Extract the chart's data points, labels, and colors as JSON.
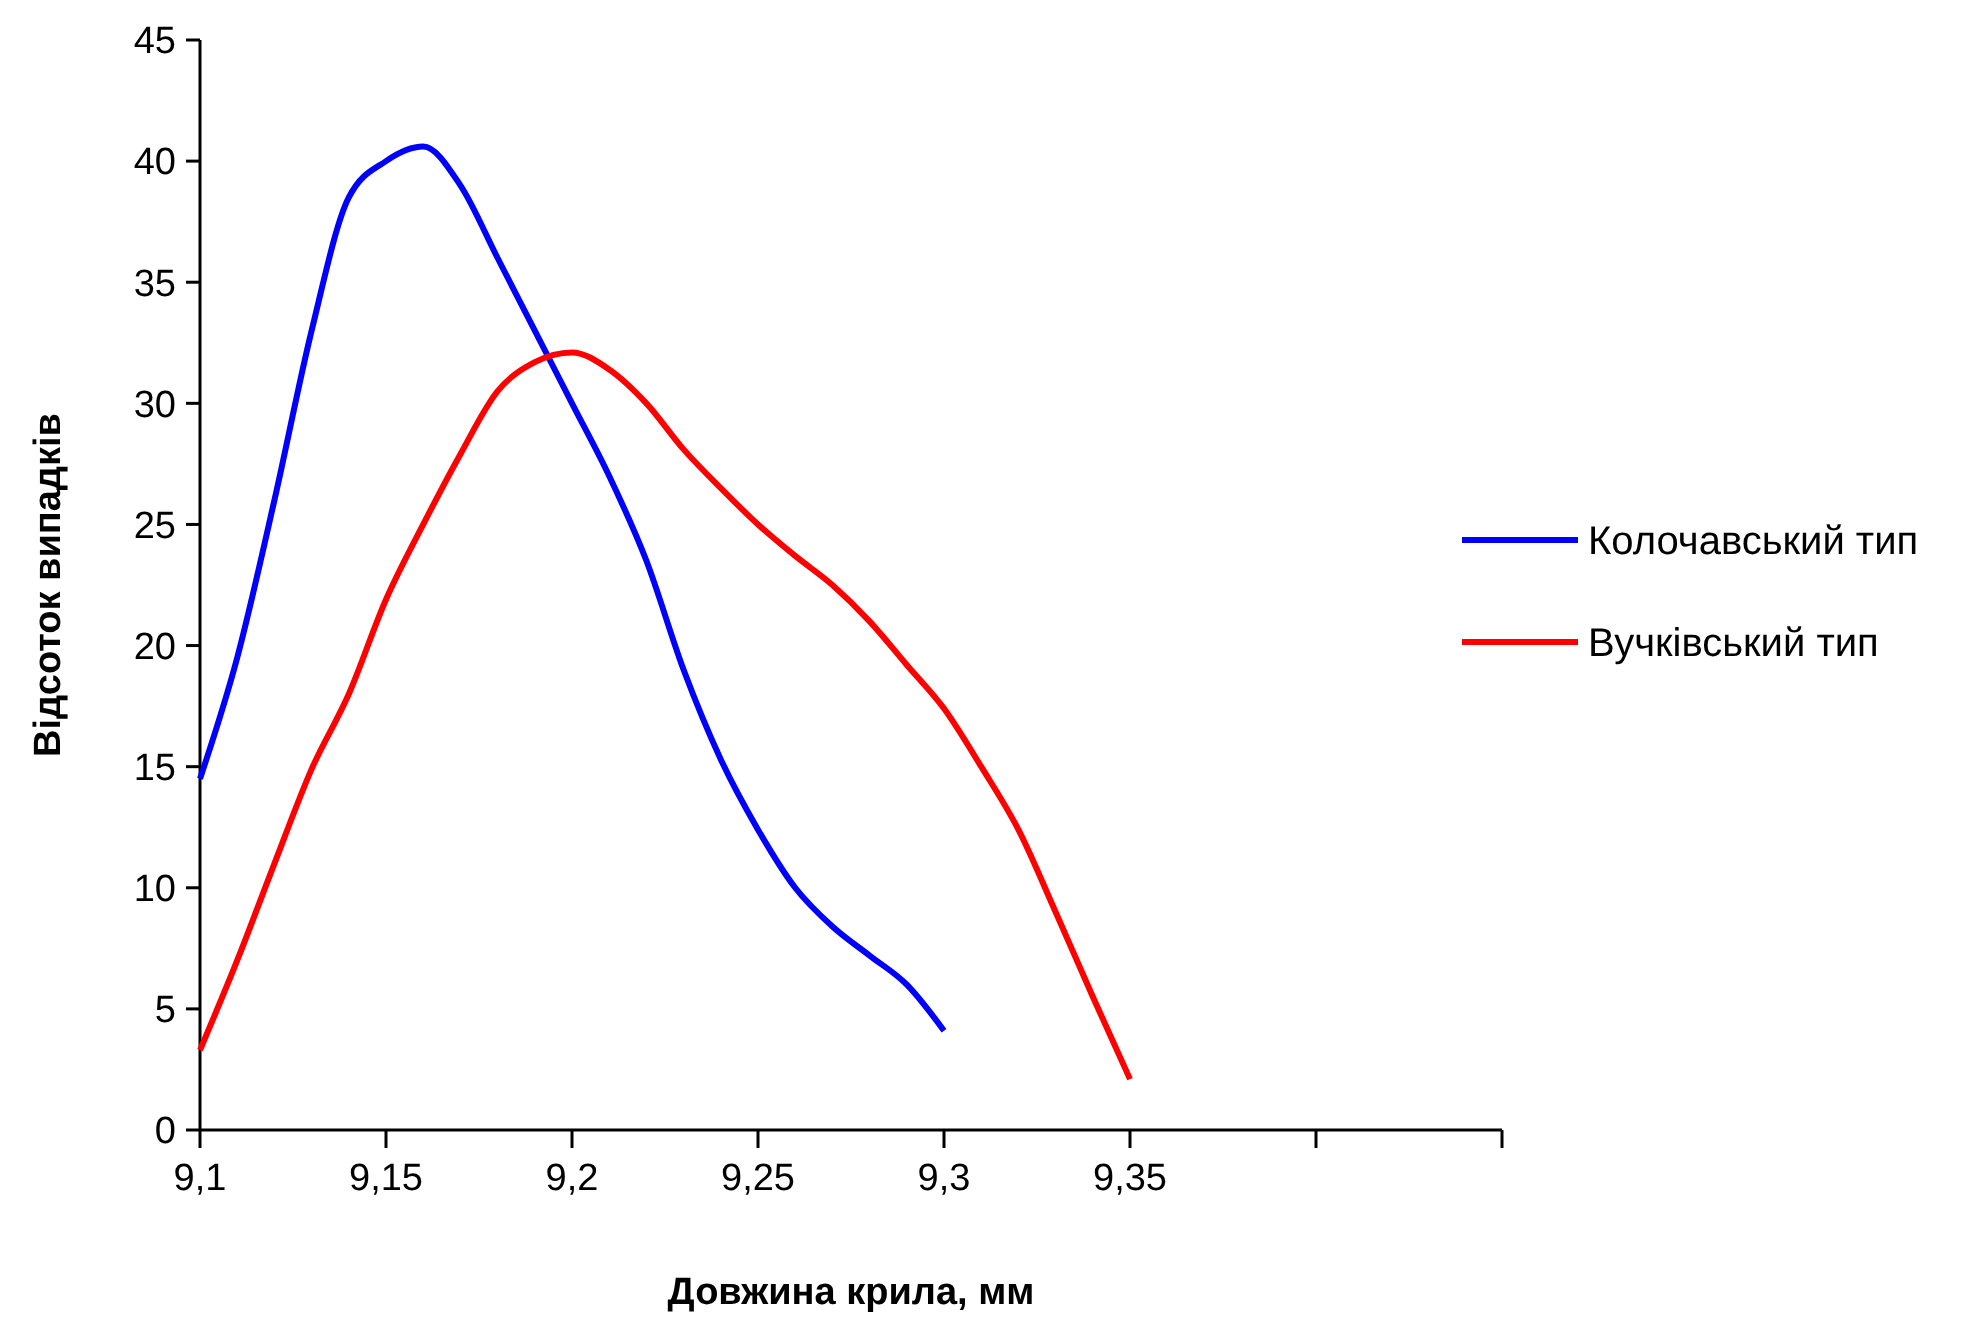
{
  "chart_data": {
    "type": "line",
    "xlabel": "Довжина крила, мм",
    "ylabel": "Відсоток випадків",
    "xlim": [
      9.1,
      9.45
    ],
    "xticks": [
      {
        "value": 9.1,
        "label": "9,1"
      },
      {
        "value": 9.15,
        "label": "9,15"
      },
      {
        "value": 9.2,
        "label": "9,2"
      },
      {
        "value": 9.25,
        "label": "9,25"
      },
      {
        "value": 9.3,
        "label": "9,3"
      },
      {
        "value": 9.35,
        "label": "9,35"
      },
      {
        "value": 9.4,
        "label": null
      },
      {
        "value": 9.45,
        "label": null
      }
    ],
    "ylim": [
      0,
      45
    ],
    "yticks": [
      0,
      5,
      10,
      15,
      20,
      25,
      30,
      35,
      40,
      45
    ],
    "grid": false,
    "legend": "right",
    "marker": "none",
    "line_style": "solid",
    "series": [
      {
        "name": "Колочавський тип",
        "color": "#0000ff",
        "x": [
          9.1,
          9.11,
          9.12,
          9.13,
          9.14,
          9.15,
          9.16,
          9.17,
          9.18,
          9.19,
          9.2,
          9.21,
          9.22,
          9.23,
          9.24,
          9.25,
          9.26,
          9.27,
          9.28,
          9.29,
          9.3
        ],
        "values": [
          14.5,
          19.5,
          26,
          33,
          38.5,
          40,
          40.6,
          39,
          36,
          33,
          30,
          27,
          23.5,
          19,
          15.3,
          12.4,
          10,
          8.4,
          7.2,
          6,
          4.1
        ]
      },
      {
        "name": "Вучківський тип",
        "color": "#ff0000",
        "x": [
          9.1,
          9.11,
          9.12,
          9.13,
          9.14,
          9.15,
          9.16,
          9.17,
          9.18,
          9.19,
          9.2,
          9.21,
          9.22,
          9.23,
          9.24,
          9.25,
          9.26,
          9.27,
          9.28,
          9.29,
          9.3,
          9.31,
          9.32,
          9.33,
          9.34,
          9.35
        ],
        "values": [
          3.3,
          7,
          11,
          14.9,
          18,
          21.9,
          25,
          27.9,
          30.5,
          31.7,
          32.1,
          31.4,
          30,
          28.1,
          26.5,
          25,
          23.7,
          22.5,
          21,
          19.2,
          17.4,
          15,
          12.4,
          9,
          5.5,
          2.1
        ]
      }
    ]
  }
}
